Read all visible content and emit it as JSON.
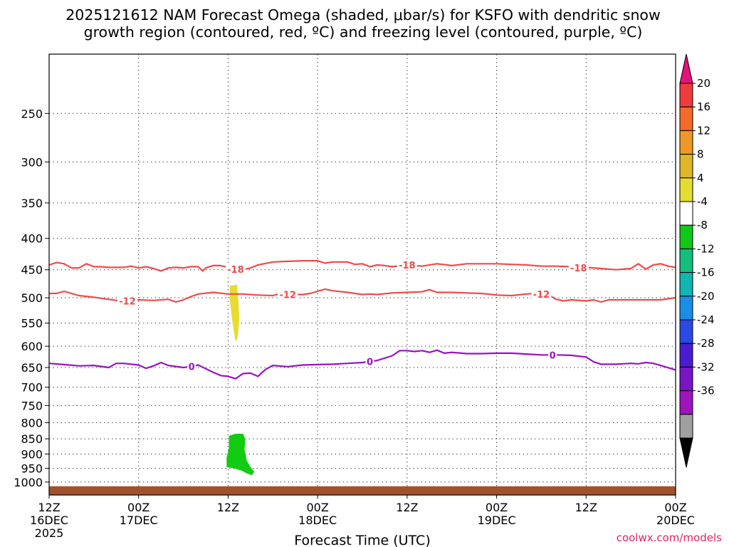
{
  "title": {
    "line1": "2025121612 NAM Forecast Omega (shaded, μbar/s) for KSFO with dendritic snow",
    "line2": "growth region (contoured, red, ºC) and freezing level (contoured, purple, ºC)"
  },
  "credit": "coolwx.com/models",
  "chart_data": {
    "type": "time-height cross section",
    "xlabel": "Forecast Time (UTC)",
    "ylabel": "",
    "y_scale": "log-pressure (hPa), inverted",
    "ylim": [
      1050,
      200
    ],
    "x_ticks": [
      {
        "h": 0,
        "line1": "12Z",
        "line2": "16DEC",
        "line3": "2025"
      },
      {
        "h": 12,
        "line1": "00Z",
        "line2": "17DEC",
        "line3": ""
      },
      {
        "h": 24,
        "line1": "12Z",
        "line2": "",
        "line3": ""
      },
      {
        "h": 36,
        "line1": "00Z",
        "line2": "18DEC",
        "line3": ""
      },
      {
        "h": 48,
        "line1": "12Z",
        "line2": "",
        "line3": ""
      },
      {
        "h": 60,
        "line1": "00Z",
        "line2": "19DEC",
        "line3": ""
      },
      {
        "h": 72,
        "line1": "12Z",
        "line2": "",
        "line3": ""
      },
      {
        "h": 84,
        "line1": "00Z",
        "line2": "20DEC",
        "line3": ""
      }
    ],
    "y_ticks": [
      250,
      300,
      350,
      400,
      450,
      500,
      550,
      600,
      650,
      700,
      750,
      800,
      850,
      900,
      950,
      1000
    ],
    "grid": true,
    "contours": [
      {
        "name": "-18",
        "color": "#f04a4a",
        "labels": [
          {
            "h": 25,
            "text": "-18"
          },
          {
            "h": 48,
            "text": "-18"
          },
          {
            "h": 71,
            "text": "-18"
          }
        ],
        "points": [
          [
            0,
            442
          ],
          [
            1,
            438
          ],
          [
            2,
            440
          ],
          [
            3,
            447
          ],
          [
            4,
            447
          ],
          [
            5,
            440
          ],
          [
            6,
            445
          ],
          [
            7,
            445
          ],
          [
            8,
            446
          ],
          [
            9,
            446
          ],
          [
            10,
            446
          ],
          [
            11,
            444
          ],
          [
            12,
            447
          ],
          [
            13,
            445
          ],
          [
            14,
            448
          ],
          [
            15,
            452
          ],
          [
            16,
            447
          ],
          [
            17,
            446
          ],
          [
            18,
            447
          ],
          [
            19,
            445
          ],
          [
            20,
            445
          ],
          [
            20.6,
            452
          ],
          [
            21,
            447
          ],
          [
            22,
            443
          ],
          [
            23,
            443
          ],
          [
            24,
            446
          ],
          [
            25,
            449
          ],
          [
            26,
            450
          ],
          [
            27,
            447
          ],
          [
            28,
            442
          ],
          [
            30,
            437
          ],
          [
            32,
            436
          ],
          [
            34,
            435
          ],
          [
            36,
            435
          ],
          [
            37,
            439
          ],
          [
            38,
            437
          ],
          [
            40,
            437
          ],
          [
            41,
            441
          ],
          [
            42,
            440
          ],
          [
            43,
            445
          ],
          [
            44,
            442
          ],
          [
            45,
            443
          ],
          [
            46,
            445
          ],
          [
            48,
            442
          ],
          [
            50,
            444
          ],
          [
            52,
            440
          ],
          [
            54,
            443
          ],
          [
            56,
            440
          ],
          [
            58,
            440
          ],
          [
            60,
            440
          ],
          [
            62,
            441
          ],
          [
            64,
            442
          ],
          [
            66,
            444
          ],
          [
            68,
            444
          ],
          [
            70,
            445
          ],
          [
            71,
            447
          ],
          [
            72,
            446
          ],
          [
            74,
            448
          ],
          [
            76,
            450
          ],
          [
            78,
            448
          ],
          [
            79,
            440
          ],
          [
            80,
            449
          ],
          [
            81,
            442
          ],
          [
            82,
            440
          ],
          [
            83,
            444
          ],
          [
            84,
            446
          ]
        ]
      },
      {
        "name": "-12",
        "color": "#f04a4a",
        "labels": [
          {
            "h": 10.5,
            "text": "-12"
          },
          {
            "h": 32,
            "text": "-12"
          },
          {
            "h": 66,
            "text": "-12"
          }
        ],
        "points": [
          [
            0,
            492
          ],
          [
            1,
            492
          ],
          [
            2,
            488
          ],
          [
            3,
            492
          ],
          [
            4,
            496
          ],
          [
            6,
            499
          ],
          [
            8,
            503
          ],
          [
            10,
            507
          ],
          [
            12,
            504
          ],
          [
            14,
            505
          ],
          [
            16,
            503
          ],
          [
            17,
            508
          ],
          [
            18,
            504
          ],
          [
            19,
            498
          ],
          [
            20,
            493
          ],
          [
            22,
            490
          ],
          [
            24,
            493
          ],
          [
            26,
            493
          ],
          [
            28,
            495
          ],
          [
            30,
            496
          ],
          [
            31,
            492
          ],
          [
            32,
            494
          ],
          [
            34,
            494
          ],
          [
            35,
            492
          ],
          [
            36,
            488
          ],
          [
            37,
            484
          ],
          [
            38,
            487
          ],
          [
            40,
            490
          ],
          [
            42,
            494
          ],
          [
            43,
            493
          ],
          [
            44,
            494
          ],
          [
            46,
            491
          ],
          [
            48,
            490
          ],
          [
            50,
            489
          ],
          [
            51,
            485
          ],
          [
            52,
            490
          ],
          [
            54,
            490
          ],
          [
            56,
            491
          ],
          [
            58,
            492
          ],
          [
            60,
            495
          ],
          [
            62,
            496
          ],
          [
            64,
            493
          ],
          [
            65,
            492
          ],
          [
            66,
            493
          ],
          [
            67,
            495
          ],
          [
            68,
            503
          ],
          [
            69,
            506
          ],
          [
            70,
            504
          ],
          [
            72,
            506
          ],
          [
            73,
            504
          ],
          [
            74,
            508
          ],
          [
            75,
            504
          ],
          [
            76,
            504
          ],
          [
            78,
            504
          ],
          [
            80,
            504
          ],
          [
            82,
            504
          ],
          [
            84,
            500
          ]
        ]
      },
      {
        "name": "0",
        "color": "#9a10c8",
        "labels": [
          {
            "h": 19.1,
            "text": "0"
          },
          {
            "h": 43,
            "text": "0"
          },
          {
            "h": 67.5,
            "text": "0"
          }
        ],
        "points": [
          [
            0,
            640
          ],
          [
            2,
            643
          ],
          [
            4,
            646
          ],
          [
            6,
            645
          ],
          [
            8,
            650
          ],
          [
            9,
            640
          ],
          [
            10,
            640
          ],
          [
            12,
            644
          ],
          [
            13,
            652
          ],
          [
            14,
            646
          ],
          [
            15,
            638
          ],
          [
            16,
            645
          ],
          [
            18,
            650
          ],
          [
            19,
            648
          ],
          [
            20,
            644
          ],
          [
            21,
            653
          ],
          [
            22,
            662
          ],
          [
            23,
            670
          ],
          [
            24,
            672
          ],
          [
            25,
            678
          ],
          [
            26,
            665
          ],
          [
            27,
            664
          ],
          [
            28,
            672
          ],
          [
            29,
            655
          ],
          [
            30,
            645
          ],
          [
            32,
            648
          ],
          [
            34,
            644
          ],
          [
            36,
            643
          ],
          [
            38,
            642
          ],
          [
            40,
            640
          ],
          [
            42,
            638
          ],
          [
            44,
            633
          ],
          [
            46,
            622
          ],
          [
            47,
            610
          ],
          [
            48,
            610
          ],
          [
            49,
            612
          ],
          [
            50,
            610
          ],
          [
            51,
            614
          ],
          [
            52,
            609
          ],
          [
            53,
            616
          ],
          [
            54,
            614
          ],
          [
            56,
            617
          ],
          [
            58,
            617
          ],
          [
            60,
            616
          ],
          [
            62,
            616
          ],
          [
            64,
            618
          ],
          [
            66,
            620
          ],
          [
            68,
            620
          ],
          [
            70,
            621
          ],
          [
            72,
            625
          ],
          [
            73,
            636
          ],
          [
            74,
            642
          ],
          [
            76,
            642
          ],
          [
            78,
            640
          ],
          [
            79,
            641
          ],
          [
            80,
            638
          ],
          [
            81,
            640
          ],
          [
            82,
            645
          ],
          [
            84,
            656
          ]
        ]
      }
    ],
    "shaded_regions": [
      {
        "name": "yellow-4-8",
        "color": "#e6dc32",
        "points": [
          [
            24.2,
            478
          ],
          [
            25.2,
            476
          ],
          [
            25.4,
            510
          ],
          [
            25.5,
            540
          ],
          [
            25.3,
            580
          ],
          [
            25.0,
            590
          ],
          [
            24.5,
            540
          ],
          [
            24.2,
            500
          ]
        ]
      },
      {
        "name": "green-8-4",
        "color": "#12cc12",
        "points": [
          [
            24.1,
            840
          ],
          [
            25,
            834
          ],
          [
            26,
            834
          ],
          [
            26.3,
            852
          ],
          [
            26.2,
            885
          ],
          [
            26.5,
            922
          ],
          [
            27.0,
            945
          ],
          [
            27.5,
            962
          ],
          [
            27.2,
            975
          ],
          [
            26.5,
            968
          ],
          [
            25.8,
            958
          ],
          [
            24.8,
            950
          ],
          [
            23.8,
            945
          ],
          [
            23.8,
            912
          ],
          [
            24.1,
            880
          ]
        ]
      }
    ],
    "terrain": {
      "color": "#a0522d",
      "top_hpa": 1016
    },
    "colorbar": {
      "unit": "μbar/s",
      "tick_labels": [
        "20",
        "16",
        "12",
        "8",
        "4",
        "-4",
        "-8",
        "-12",
        "-16",
        "-20",
        "-24",
        "-28",
        "-32",
        "-36"
      ],
      "colors": [
        "#e6127a",
        "#ee3c3c",
        "#f26b28",
        "#f19726",
        "#e0b528",
        "#e3dd30",
        "#ffffff",
        "#10c818",
        "#14be7e",
        "#12b4b4",
        "#1a8ee6",
        "#2a4ae6",
        "#4a1cd0",
        "#7a14c4",
        "#a014c0",
        "#a0a0a0",
        "#000000"
      ]
    }
  }
}
